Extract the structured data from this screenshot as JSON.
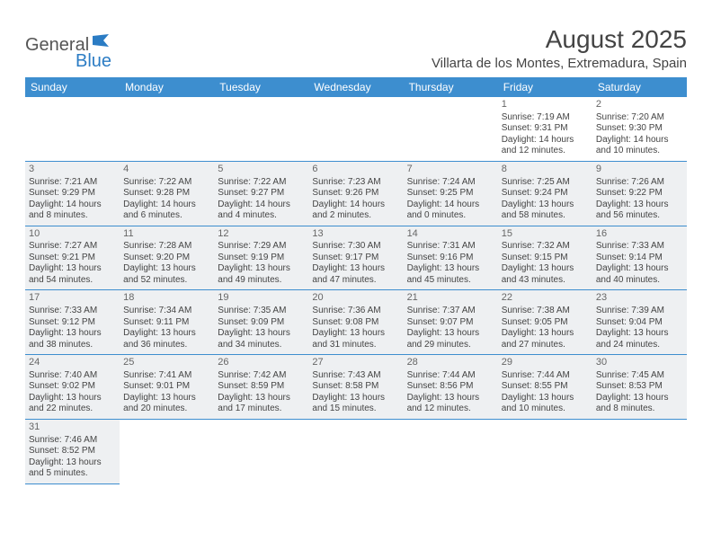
{
  "logo": {
    "part1": "General",
    "part2": "Blue"
  },
  "title": "August 2025",
  "location": "Villarta de los Montes, Extremadura, Spain",
  "columns": [
    "Sunday",
    "Monday",
    "Tuesday",
    "Wednesday",
    "Thursday",
    "Friday",
    "Saturday"
  ],
  "colors": {
    "header_bg": "#3d8ecf",
    "header_text": "#ffffff",
    "row_grey": "#eef0f2",
    "row_white": "#ffffff",
    "border": "#3d8ecf",
    "logo_blue": "#2b7cc4",
    "text": "#444444"
  },
  "weeks": [
    {
      "bg": "white",
      "days": [
        null,
        null,
        null,
        null,
        null,
        {
          "n": "1",
          "sunrise": "Sunrise: 7:19 AM",
          "sunset": "Sunset: 9:31 PM",
          "daylight": "Daylight: 14 hours and 12 minutes."
        },
        {
          "n": "2",
          "sunrise": "Sunrise: 7:20 AM",
          "sunset": "Sunset: 9:30 PM",
          "daylight": "Daylight: 14 hours and 10 minutes."
        }
      ]
    },
    {
      "bg": "grey",
      "days": [
        {
          "n": "3",
          "sunrise": "Sunrise: 7:21 AM",
          "sunset": "Sunset: 9:29 PM",
          "daylight": "Daylight: 14 hours and 8 minutes."
        },
        {
          "n": "4",
          "sunrise": "Sunrise: 7:22 AM",
          "sunset": "Sunset: 9:28 PM",
          "daylight": "Daylight: 14 hours and 6 minutes."
        },
        {
          "n": "5",
          "sunrise": "Sunrise: 7:22 AM",
          "sunset": "Sunset: 9:27 PM",
          "daylight": "Daylight: 14 hours and 4 minutes."
        },
        {
          "n": "6",
          "sunrise": "Sunrise: 7:23 AM",
          "sunset": "Sunset: 9:26 PM",
          "daylight": "Daylight: 14 hours and 2 minutes."
        },
        {
          "n": "7",
          "sunrise": "Sunrise: 7:24 AM",
          "sunset": "Sunset: 9:25 PM",
          "daylight": "Daylight: 14 hours and 0 minutes."
        },
        {
          "n": "8",
          "sunrise": "Sunrise: 7:25 AM",
          "sunset": "Sunset: 9:24 PM",
          "daylight": "Daylight: 13 hours and 58 minutes."
        },
        {
          "n": "9",
          "sunrise": "Sunrise: 7:26 AM",
          "sunset": "Sunset: 9:22 PM",
          "daylight": "Daylight: 13 hours and 56 minutes."
        }
      ]
    },
    {
      "bg": "white",
      "days": [
        {
          "n": "10",
          "sunrise": "Sunrise: 7:27 AM",
          "sunset": "Sunset: 9:21 PM",
          "daylight": "Daylight: 13 hours and 54 minutes."
        },
        {
          "n": "11",
          "sunrise": "Sunrise: 7:28 AM",
          "sunset": "Sunset: 9:20 PM",
          "daylight": "Daylight: 13 hours and 52 minutes."
        },
        {
          "n": "12",
          "sunrise": "Sunrise: 7:29 AM",
          "sunset": "Sunset: 9:19 PM",
          "daylight": "Daylight: 13 hours and 49 minutes."
        },
        {
          "n": "13",
          "sunrise": "Sunrise: 7:30 AM",
          "sunset": "Sunset: 9:17 PM",
          "daylight": "Daylight: 13 hours and 47 minutes."
        },
        {
          "n": "14",
          "sunrise": "Sunrise: 7:31 AM",
          "sunset": "Sunset: 9:16 PM",
          "daylight": "Daylight: 13 hours and 45 minutes."
        },
        {
          "n": "15",
          "sunrise": "Sunrise: 7:32 AM",
          "sunset": "Sunset: 9:15 PM",
          "daylight": "Daylight: 13 hours and 43 minutes."
        },
        {
          "n": "16",
          "sunrise": "Sunrise: 7:33 AM",
          "sunset": "Sunset: 9:14 PM",
          "daylight": "Daylight: 13 hours and 40 minutes."
        }
      ]
    },
    {
      "bg": "grey",
      "days": [
        {
          "n": "17",
          "sunrise": "Sunrise: 7:33 AM",
          "sunset": "Sunset: 9:12 PM",
          "daylight": "Daylight: 13 hours and 38 minutes."
        },
        {
          "n": "18",
          "sunrise": "Sunrise: 7:34 AM",
          "sunset": "Sunset: 9:11 PM",
          "daylight": "Daylight: 13 hours and 36 minutes."
        },
        {
          "n": "19",
          "sunrise": "Sunrise: 7:35 AM",
          "sunset": "Sunset: 9:09 PM",
          "daylight": "Daylight: 13 hours and 34 minutes."
        },
        {
          "n": "20",
          "sunrise": "Sunrise: 7:36 AM",
          "sunset": "Sunset: 9:08 PM",
          "daylight": "Daylight: 13 hours and 31 minutes."
        },
        {
          "n": "21",
          "sunrise": "Sunrise: 7:37 AM",
          "sunset": "Sunset: 9:07 PM",
          "daylight": "Daylight: 13 hours and 29 minutes."
        },
        {
          "n": "22",
          "sunrise": "Sunrise: 7:38 AM",
          "sunset": "Sunset: 9:05 PM",
          "daylight": "Daylight: 13 hours and 27 minutes."
        },
        {
          "n": "23",
          "sunrise": "Sunrise: 7:39 AM",
          "sunset": "Sunset: 9:04 PM",
          "daylight": "Daylight: 13 hours and 24 minutes."
        }
      ]
    },
    {
      "bg": "white",
      "days": [
        {
          "n": "24",
          "sunrise": "Sunrise: 7:40 AM",
          "sunset": "Sunset: 9:02 PM",
          "daylight": "Daylight: 13 hours and 22 minutes."
        },
        {
          "n": "25",
          "sunrise": "Sunrise: 7:41 AM",
          "sunset": "Sunset: 9:01 PM",
          "daylight": "Daylight: 13 hours and 20 minutes."
        },
        {
          "n": "26",
          "sunrise": "Sunrise: 7:42 AM",
          "sunset": "Sunset: 8:59 PM",
          "daylight": "Daylight: 13 hours and 17 minutes."
        },
        {
          "n": "27",
          "sunrise": "Sunrise: 7:43 AM",
          "sunset": "Sunset: 8:58 PM",
          "daylight": "Daylight: 13 hours and 15 minutes."
        },
        {
          "n": "28",
          "sunrise": "Sunrise: 7:44 AM",
          "sunset": "Sunset: 8:56 PM",
          "daylight": "Daylight: 13 hours and 12 minutes."
        },
        {
          "n": "29",
          "sunrise": "Sunrise: 7:44 AM",
          "sunset": "Sunset: 8:55 PM",
          "daylight": "Daylight: 13 hours and 10 minutes."
        },
        {
          "n": "30",
          "sunrise": "Sunrise: 7:45 AM",
          "sunset": "Sunset: 8:53 PM",
          "daylight": "Daylight: 13 hours and 8 minutes."
        }
      ]
    },
    {
      "bg": "grey",
      "days": [
        {
          "n": "31",
          "sunrise": "Sunrise: 7:46 AM",
          "sunset": "Sunset: 8:52 PM",
          "daylight": "Daylight: 13 hours and 5 minutes."
        },
        null,
        null,
        null,
        null,
        null,
        null
      ]
    }
  ]
}
